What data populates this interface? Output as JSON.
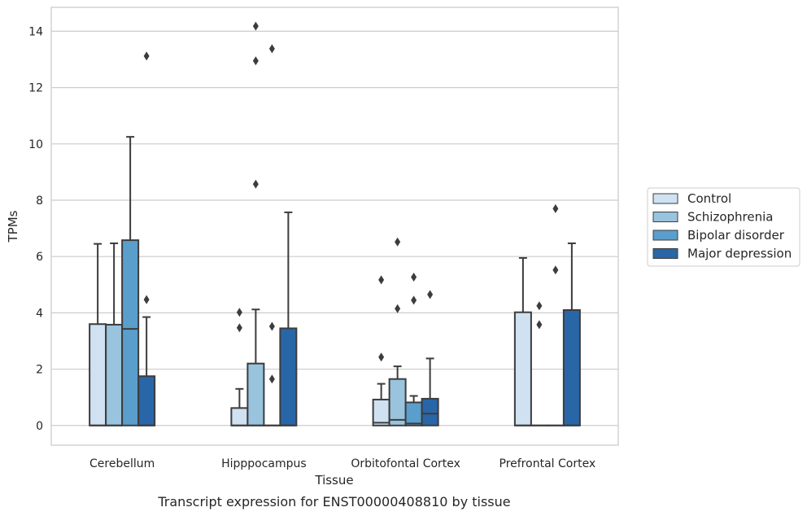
{
  "chart_data": {
    "type": "box",
    "title": "",
    "caption": "Transcript expression for ENST00000408810 by tissue",
    "xlabel": "Tissue",
    "ylabel": "TPMs",
    "ylim": [
      -0.7,
      14.85
    ],
    "yticks": [
      0,
      2,
      4,
      6,
      8,
      10,
      12,
      14
    ],
    "grid": "horizontal",
    "legend_position": "right",
    "categories": [
      "Cerebellum",
      "Hipppocampus",
      "Orbitofontal Cortex",
      "Prefrontal Cortex"
    ],
    "series": [
      {
        "name": "Control",
        "color": "#d0e1f2",
        "boxes": [
          {
            "q1": 0,
            "median": 0,
            "q3": 3.6,
            "whisker_low": 0,
            "whisker_high": 6.45,
            "outliers": []
          },
          {
            "q1": 0,
            "median": 0,
            "q3": 0.62,
            "whisker_low": 0,
            "whisker_high": 1.3,
            "outliers": [
              3.47,
              4.02
            ]
          },
          {
            "q1": 0,
            "median": 0.1,
            "q3": 0.92,
            "whisker_low": 0,
            "whisker_high": 1.48,
            "outliers": [
              2.43,
              5.17
            ]
          },
          {
            "q1": 0,
            "median": 0,
            "q3": 4.02,
            "whisker_low": 0,
            "whisker_high": 5.95,
            "outliers": []
          }
        ]
      },
      {
        "name": "Schizophrenia",
        "color": "#9ac3de",
        "boxes": [
          {
            "q1": 0,
            "median": 0,
            "q3": 3.58,
            "whisker_low": 0,
            "whisker_high": 6.47,
            "outliers": []
          },
          {
            "q1": 0,
            "median": 0,
            "q3": 2.2,
            "whisker_low": 0,
            "whisker_high": 4.12,
            "outliers": [
              8.57,
              12.95,
              14.18
            ]
          },
          {
            "q1": 0,
            "median": 0.2,
            "q3": 1.65,
            "whisker_low": 0,
            "whisker_high": 2.1,
            "outliers": [
              4.15,
              6.52
            ]
          },
          {
            "q1": 0,
            "median": 0,
            "q3": 0,
            "whisker_low": 0,
            "whisker_high": 0,
            "outliers": [
              3.58,
              4.25
            ]
          }
        ]
      },
      {
        "name": "Bipolar disorder",
        "color": "#5a9ecc",
        "boxes": [
          {
            "q1": 0,
            "median": 3.43,
            "q3": 6.58,
            "whisker_low": 0,
            "whisker_high": 10.25,
            "outliers": []
          },
          {
            "q1": 0,
            "median": 0,
            "q3": 0,
            "whisker_low": 0,
            "whisker_high": 0,
            "outliers": [
              1.65,
              3.52,
              13.38
            ]
          },
          {
            "q1": 0,
            "median": 0.07,
            "q3": 0.82,
            "whisker_low": 0,
            "whisker_high": 1.05,
            "outliers": [
              4.45,
              5.27
            ]
          },
          {
            "q1": 0,
            "median": 0,
            "q3": 0,
            "whisker_low": 0,
            "whisker_high": 0,
            "outliers": [
              5.52,
              7.7
            ]
          }
        ]
      },
      {
        "name": "Major depression",
        "color": "#2866a8",
        "boxes": [
          {
            "q1": 0,
            "median": 0,
            "q3": 1.75,
            "whisker_low": 0,
            "whisker_high": 3.85,
            "outliers": [
              4.47,
              13.12
            ]
          },
          {
            "q1": 0,
            "median": 0,
            "q3": 3.45,
            "whisker_low": 0,
            "whisker_high": 7.57,
            "outliers": []
          },
          {
            "q1": 0,
            "median": 0.42,
            "q3": 0.95,
            "whisker_low": 0,
            "whisker_high": 2.38,
            "outliers": [
              4.65
            ]
          },
          {
            "q1": 0,
            "median": 0,
            "q3": 4.1,
            "whisker_low": 0,
            "whisker_high": 6.47,
            "outliers": []
          }
        ]
      }
    ]
  }
}
